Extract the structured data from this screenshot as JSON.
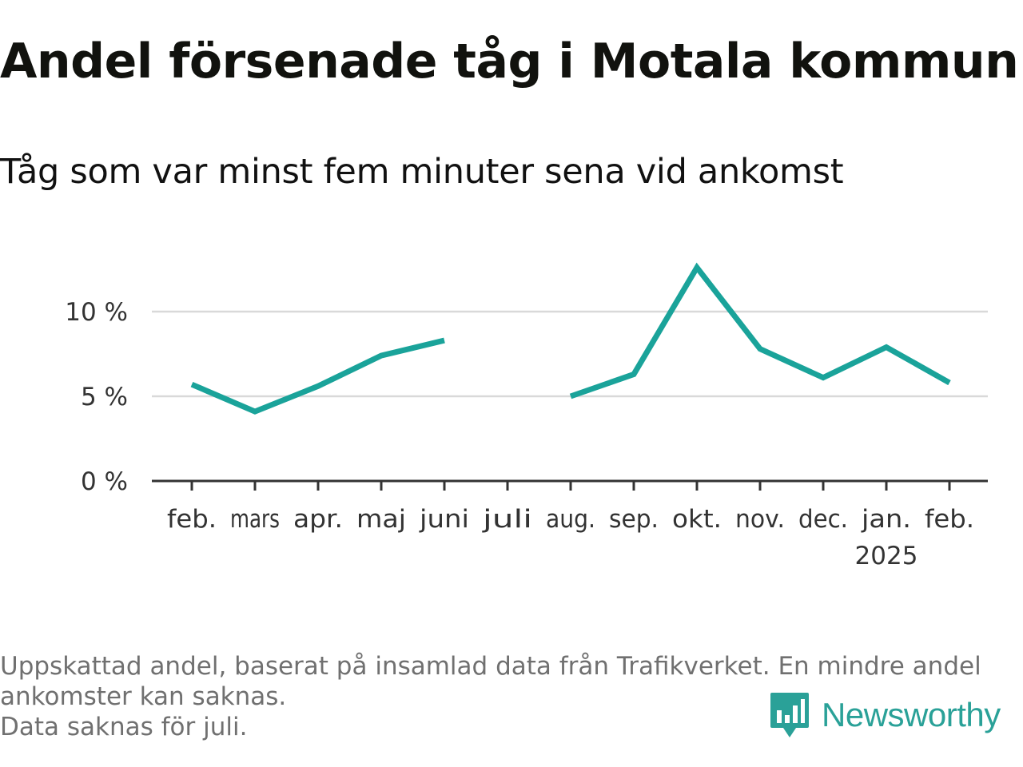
{
  "title": "Andel försenade tåg i Motala kommun",
  "subtitle": "Tåg som var minst fem minuter sena vid ankomst",
  "footnote": {
    "line1": "Uppskattad andel, baserat på insamlad data från Trafikverket. En mindre andel",
    "line2": "ankomster kan saknas.",
    "line3": "Data saknas för juli."
  },
  "brand": {
    "name": "Newsworthy",
    "color": "#2aa198",
    "icon": "newsworthy-logo-icon"
  },
  "colors": {
    "line": "#1aa39a",
    "grid": "#d9d9d9",
    "axis": "#333333",
    "tick_text": "#333333"
  },
  "chart_data": {
    "type": "line",
    "categories": [
      "feb.",
      "mars",
      "apr.",
      "maj",
      "juni",
      "juli",
      "aug.",
      "sep.",
      "okt.",
      "nov.",
      "dec.",
      "jan.",
      "feb."
    ],
    "year_label": {
      "under": "jan.",
      "text": "2025"
    },
    "series": [
      {
        "values": [
          5.7,
          4.1,
          5.6,
          7.4,
          8.3,
          null,
          5.0,
          6.3,
          12.6,
          7.8,
          6.1,
          7.9,
          5.8
        ]
      }
    ],
    "y_ticks": [
      {
        "value": 0,
        "label": "0 %"
      },
      {
        "value": 5,
        "label": "5 %"
      },
      {
        "value": 10,
        "label": "10 %"
      }
    ],
    "ylim": [
      0,
      13
    ],
    "grid": true,
    "legend": "none"
  }
}
